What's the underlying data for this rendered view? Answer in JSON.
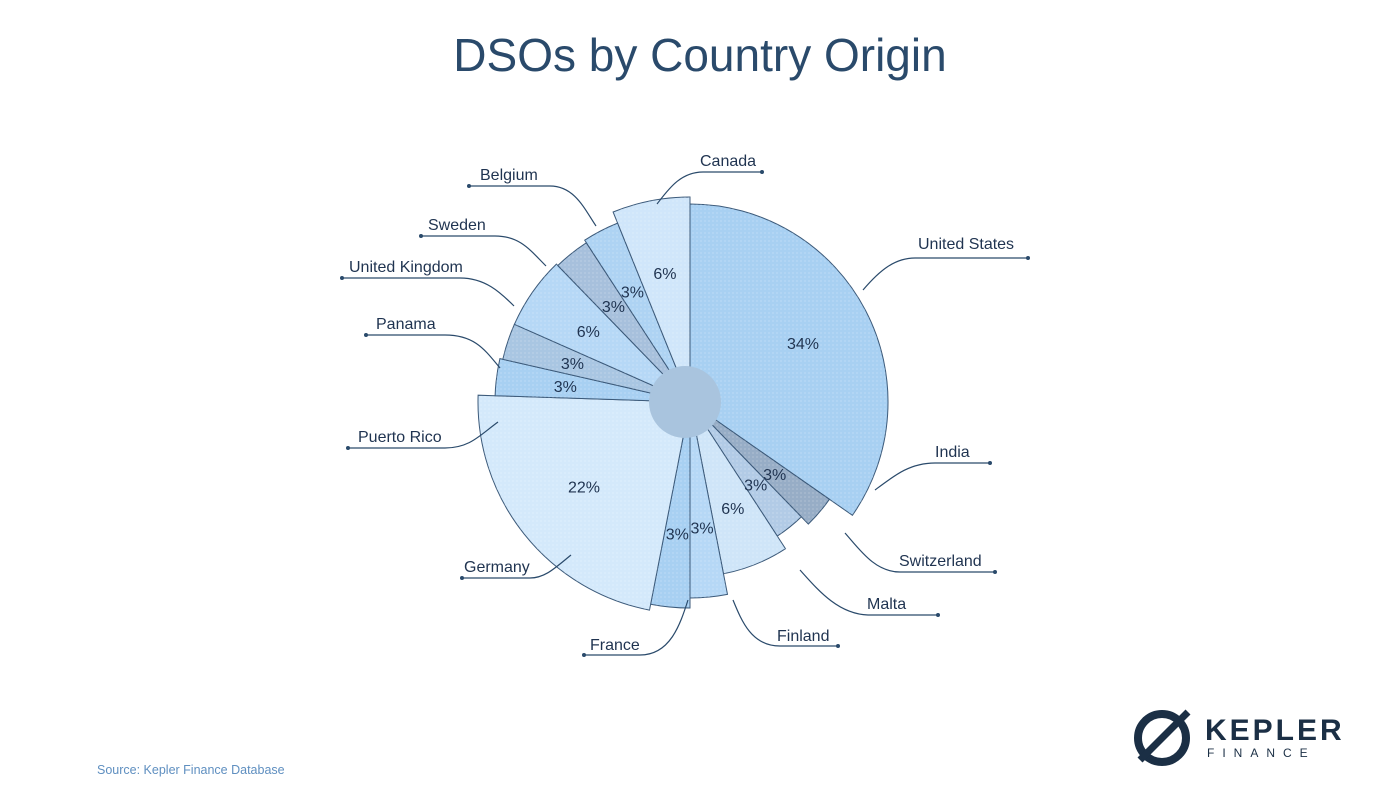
{
  "title": "DSOs by Country Origin",
  "source": "Source: Kepler Finance Database",
  "logo": {
    "word1": "KEPLER",
    "word2": "FINANCE"
  },
  "chart_data": {
    "type": "pie",
    "title": "DSOs by Country Origin",
    "slices": [
      {
        "label": "United States",
        "value": 34,
        "display": "34%",
        "color": "#a8d0f2"
      },
      {
        "label": "India",
        "value": 3,
        "display": "3%",
        "color": "#97adc6"
      },
      {
        "label": "Switzerland",
        "value": 3,
        "display": "3%",
        "color": "#b2cbe6"
      },
      {
        "label": "Malta",
        "value": 6,
        "display": "6%",
        "color": "#cfe5f8"
      },
      {
        "label": "Finland",
        "value": 3,
        "display": "3%",
        "color": "#b6d8f6"
      },
      {
        "label": "France",
        "value": 3,
        "display": "3%",
        "color": "#a8d0f2"
      },
      {
        "label": "Germany",
        "value": 22,
        "display": "22%",
        "color": "#d4e9fb"
      },
      {
        "label": "Puerto Rico",
        "value": 3,
        "display": "3%",
        "color": "#a8d0f2"
      },
      {
        "label": "Panama",
        "value": 3,
        "display": "3%",
        "color": "#a9c6e2"
      },
      {
        "label": "United Kingdom",
        "value": 6,
        "display": "6%",
        "color": "#b6d8f6"
      },
      {
        "label": "Sweden",
        "value": 3,
        "display": "3%",
        "color": "#a7c0dc"
      },
      {
        "label": "Belgium",
        "value": 3,
        "display": "3%",
        "color": "#aed3f3"
      },
      {
        "label": "Canada",
        "value": 6,
        "display": "6%",
        "color": "#d0e6fa"
      }
    ]
  }
}
